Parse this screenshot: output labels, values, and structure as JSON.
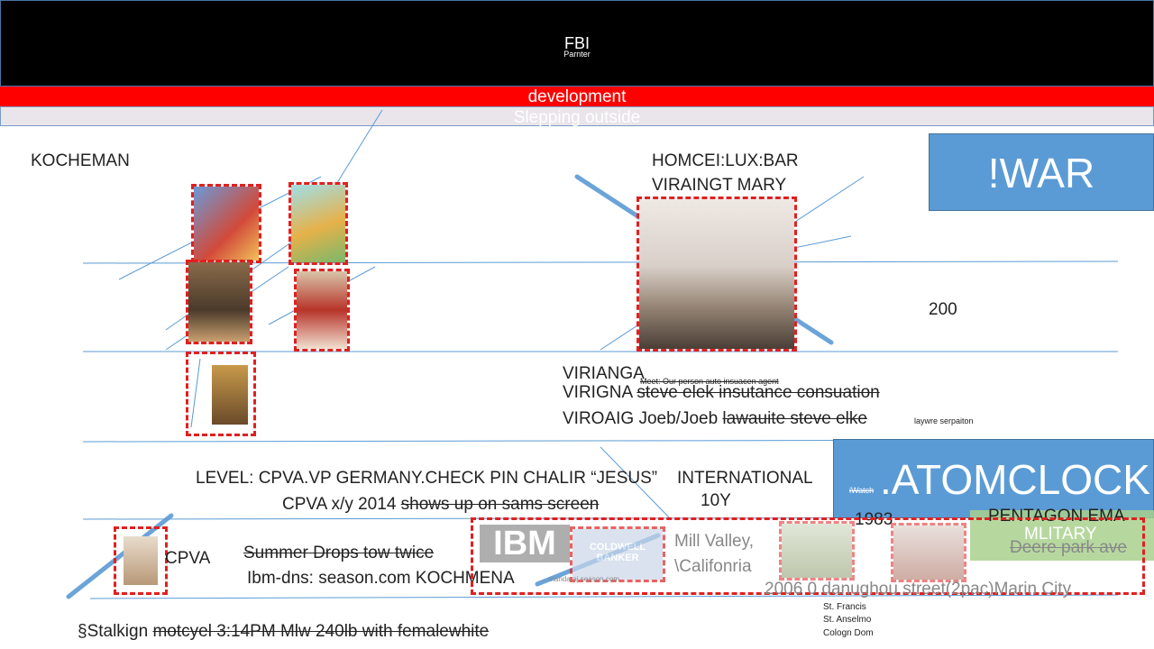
{
  "header": {
    "title": "FBI",
    "subtitle": "Parnter"
  },
  "bars": {
    "red": "development",
    "grey": "Slepping outside"
  },
  "labels": {
    "kocheman": "KOCHEMAN",
    "homcei": "HOMCEI:LUX:BAR",
    "viraingt": "VIRAINGT MARY",
    "two_hundred": "200",
    "virianga": "VIRIANGA",
    "meet": "Meet: Our person auto insuacen agent",
    "virigna_prefix": "VIRIGNA ",
    "virigna_strike": "steve elek insutance consuation",
    "viroaig_prefix": "VIROAIG Joeb/Joeb  ",
    "viroaig_strike": "lawauite steve elke",
    "laywre": "laywre serpaiton",
    "level_line": "LEVEL: CPVA.VP GERMANY.CHECK PIN CHALIR “JESUS”",
    "international": "INTERNATIONAL",
    "ten_y": "10Y",
    "cpva_prefix": "CPVA x/y 2014 ",
    "cpva_strike": "shows up on sams screen",
    "cpva": "CPVA",
    "summer": "Summer Drops tow twice",
    "ibm_dns": "Ibm-dns: season.com KOCHMENA",
    "mill_valley_1": "Mill Valley,",
    "mill_valley_2": "\\Califonria",
    "stalk_prefix": "§Stalkign ",
    "stalk_strike": "motcyel 3:14PM Mlw 240lb with femalewhite",
    "year_1983": "1983",
    "pentagon": "PENTAGON EMA",
    "military": "MLITARY",
    "deere": "Deere park ave",
    "dana_line": "2006   0 danughou street(2pac)Marin City",
    "st_francis": "St. Francis",
    "st_anselmo": "St. Anselmo",
    "cologn": "Cologn Dom",
    "ibm_logo": "IBM",
    "coldwell": "COLDWELL BANKER",
    "small_url": "… mandaraj.season.com"
  },
  "boxes": {
    "war": "!WAR",
    "atomclock": ".ATOMCLOCK",
    "iwatch": "iWatch"
  },
  "colors": {
    "accent_blue": "#5b9bd5",
    "red": "#ff0000",
    "dash_red": "#e02020",
    "green": "#a9d18e"
  }
}
